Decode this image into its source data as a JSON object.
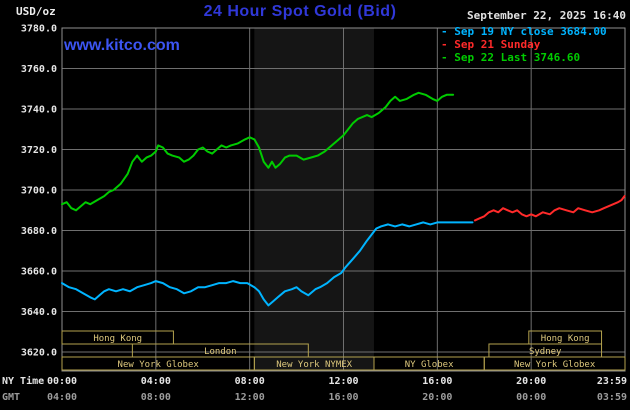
{
  "header": {
    "units_label": "USD/oz",
    "title": "24 Hour Spot Gold (Bid)",
    "datetime": "September 22, 2025 16:40",
    "watermark": "www.kitco.com"
  },
  "legend": {
    "items": [
      {
        "marker": "-",
        "label": "Sep 19 NY close 3684.00",
        "color": "#00b4ff"
      },
      {
        "marker": "-",
        "label": "Sep 21 Sunday",
        "color": "#ff2a2a"
      },
      {
        "marker": "-",
        "label": "Sep 22 Last 3746.60",
        "color": "#00cc00"
      }
    ]
  },
  "axes": {
    "ny_time_label": "NY Time",
    "gmt_label": "GMT",
    "y_ticks": [
      "3780.0",
      "3760.0",
      "3740.0",
      "3720.0",
      "3700.0",
      "3680.0",
      "3660.0",
      "3640.0",
      "3620.0"
    ],
    "x_ticks": [
      {
        "h": 0,
        "ny": "00:00",
        "gmt": "04:00",
        "grid": false
      },
      {
        "h": 4,
        "ny": "04:00",
        "gmt": "08:00",
        "grid": true
      },
      {
        "h": 8,
        "ny": "08:00",
        "gmt": "12:00",
        "grid": true
      },
      {
        "h": 12,
        "ny": "12:00",
        "gmt": "16:00",
        "grid": true
      },
      {
        "h": 16,
        "ny": "16:00",
        "gmt": "20:00",
        "grid": true
      },
      {
        "h": 20,
        "ny": "20:00",
        "gmt": "00:00",
        "grid": true
      },
      {
        "h": 23.983,
        "ny": "23:59",
        "gmt": "03:59",
        "grid": false
      }
    ]
  },
  "sessions": {
    "border_color": "#b3a24e",
    "text_color": "#ddc87d",
    "rows": [
      [
        {
          "label": "Hong Kong",
          "start": 0,
          "end": 4.75
        },
        {
          "label": "Hong Kong",
          "start": 19.9,
          "end": 23.0
        }
      ],
      [
        {
          "label": "London",
          "start": 3.0,
          "end": 10.5
        },
        {
          "label": "Sydney",
          "start": 18.2,
          "end": 23.0
        }
      ],
      [
        {
          "label": "New York Globex",
          "start": 0,
          "end": 8.2
        },
        {
          "label": "New York NYMEX",
          "start": 8.2,
          "end": 13.3
        },
        {
          "label": "NY Globex",
          "start": 13.3,
          "end": 18.0
        },
        {
          "label": "New York Globex",
          "start": 18.0,
          "end": 24.0
        }
      ]
    ]
  },
  "chart_data": {
    "type": "line",
    "title": "24 Hour Spot Gold (Bid)",
    "xlabel": "NY Time (hours)",
    "ylabel": "USD/oz",
    "xlim": [
      0,
      24
    ],
    "ylim": [
      3620,
      3780
    ],
    "grid": true,
    "legend_position": "top-right",
    "band_color": "#151515",
    "highlight_band": {
      "start": 8.2,
      "end": 13.3,
      "meaning": "New York NYMEX session"
    },
    "series": [
      {
        "id": "sep19",
        "name": "Sep 19 NY close 3684.00",
        "color": "#00b4ff",
        "points": [
          [
            0,
            3654
          ],
          [
            0.3,
            3652
          ],
          [
            0.6,
            3651
          ],
          [
            0.9,
            3649
          ],
          [
            1.2,
            3647
          ],
          [
            1.4,
            3646
          ],
          [
            1.6,
            3648
          ],
          [
            1.8,
            3650
          ],
          [
            2,
            3651
          ],
          [
            2.3,
            3650
          ],
          [
            2.6,
            3651
          ],
          [
            2.9,
            3650
          ],
          [
            3.2,
            3652
          ],
          [
            3.5,
            3653
          ],
          [
            3.8,
            3654
          ],
          [
            4,
            3655
          ],
          [
            4.3,
            3654
          ],
          [
            4.6,
            3652
          ],
          [
            4.9,
            3651
          ],
          [
            5.2,
            3649
          ],
          [
            5.5,
            3650
          ],
          [
            5.8,
            3652
          ],
          [
            6.1,
            3652
          ],
          [
            6.4,
            3653
          ],
          [
            6.7,
            3654
          ],
          [
            7,
            3654
          ],
          [
            7.3,
            3655
          ],
          [
            7.6,
            3654
          ],
          [
            7.9,
            3654
          ],
          [
            8.2,
            3652
          ],
          [
            8.4,
            3650
          ],
          [
            8.6,
            3646
          ],
          [
            8.8,
            3643
          ],
          [
            9,
            3645
          ],
          [
            9.2,
            3647
          ],
          [
            9.5,
            3650
          ],
          [
            9.8,
            3651
          ],
          [
            10,
            3652
          ],
          [
            10.2,
            3650
          ],
          [
            10.5,
            3648
          ],
          [
            10.8,
            3651
          ],
          [
            11,
            3652
          ],
          [
            11.3,
            3654
          ],
          [
            11.6,
            3657
          ],
          [
            11.9,
            3659
          ],
          [
            12.1,
            3662
          ],
          [
            12.4,
            3666
          ],
          [
            12.7,
            3670
          ],
          [
            13,
            3675
          ],
          [
            13.2,
            3678
          ],
          [
            13.4,
            3681
          ],
          [
            13.6,
            3682
          ],
          [
            13.9,
            3683
          ],
          [
            14.2,
            3682
          ],
          [
            14.5,
            3683
          ],
          [
            14.8,
            3682
          ],
          [
            15.1,
            3683
          ],
          [
            15.4,
            3684
          ],
          [
            15.7,
            3683
          ],
          [
            16,
            3684
          ],
          [
            16.4,
            3684
          ],
          [
            16.8,
            3684
          ],
          [
            17.2,
            3684
          ],
          [
            17.5,
            3684
          ]
        ]
      },
      {
        "id": "sep21",
        "name": "Sep 21 Sunday",
        "color": "#ff2a2a",
        "points": [
          [
            17.6,
            3685
          ],
          [
            17.8,
            3686
          ],
          [
            18,
            3687
          ],
          [
            18.2,
            3689
          ],
          [
            18.4,
            3690
          ],
          [
            18.6,
            3689
          ],
          [
            18.8,
            3691
          ],
          [
            19,
            3690
          ],
          [
            19.2,
            3689
          ],
          [
            19.4,
            3690
          ],
          [
            19.6,
            3688
          ],
          [
            19.8,
            3687
          ],
          [
            20,
            3688
          ],
          [
            20.2,
            3687
          ],
          [
            20.5,
            3689
          ],
          [
            20.8,
            3688
          ],
          [
            21,
            3690
          ],
          [
            21.2,
            3691
          ],
          [
            21.5,
            3690
          ],
          [
            21.8,
            3689
          ],
          [
            22,
            3691
          ],
          [
            22.3,
            3690
          ],
          [
            22.6,
            3689
          ],
          [
            22.9,
            3690
          ],
          [
            23.1,
            3691
          ],
          [
            23.3,
            3692
          ],
          [
            23.5,
            3693
          ],
          [
            23.7,
            3694
          ],
          [
            23.85,
            3695
          ],
          [
            23.98,
            3697
          ]
        ]
      },
      {
        "id": "sep22",
        "name": "Sep 22 Last 3746.60",
        "color": "#00cc00",
        "points": [
          [
            0,
            3693
          ],
          [
            0.2,
            3694
          ],
          [
            0.4,
            3691
          ],
          [
            0.6,
            3690
          ],
          [
            0.8,
            3692
          ],
          [
            1,
            3694
          ],
          [
            1.2,
            3693
          ],
          [
            1.5,
            3695
          ],
          [
            1.8,
            3697
          ],
          [
            2,
            3699
          ],
          [
            2.2,
            3700
          ],
          [
            2.5,
            3703
          ],
          [
            2.8,
            3708
          ],
          [
            3,
            3714
          ],
          [
            3.2,
            3717
          ],
          [
            3.4,
            3714
          ],
          [
            3.6,
            3716
          ],
          [
            3.8,
            3717
          ],
          [
            4,
            3719
          ],
          [
            4.1,
            3722
          ],
          [
            4.3,
            3721
          ],
          [
            4.5,
            3718
          ],
          [
            4.7,
            3717
          ],
          [
            5,
            3716
          ],
          [
            5.2,
            3714
          ],
          [
            5.4,
            3715
          ],
          [
            5.6,
            3717
          ],
          [
            5.8,
            3720
          ],
          [
            6,
            3721
          ],
          [
            6.2,
            3719
          ],
          [
            6.4,
            3718
          ],
          [
            6.6,
            3720
          ],
          [
            6.8,
            3722
          ],
          [
            7,
            3721
          ],
          [
            7.2,
            3722
          ],
          [
            7.5,
            3723
          ],
          [
            7.8,
            3725
          ],
          [
            8,
            3726
          ],
          [
            8.2,
            3725
          ],
          [
            8.4,
            3721
          ],
          [
            8.6,
            3714
          ],
          [
            8.8,
            3711
          ],
          [
            8.95,
            3714
          ],
          [
            9.1,
            3711
          ],
          [
            9.3,
            3713
          ],
          [
            9.5,
            3716
          ],
          [
            9.7,
            3717
          ],
          [
            10,
            3717
          ],
          [
            10.3,
            3715
          ],
          [
            10.6,
            3716
          ],
          [
            10.9,
            3717
          ],
          [
            11.2,
            3719
          ],
          [
            11.5,
            3722
          ],
          [
            11.8,
            3725
          ],
          [
            12,
            3727
          ],
          [
            12.2,
            3730
          ],
          [
            12.4,
            3733
          ],
          [
            12.6,
            3735
          ],
          [
            12.8,
            3736
          ],
          [
            13,
            3737
          ],
          [
            13.2,
            3736
          ],
          [
            13.5,
            3738
          ],
          [
            13.8,
            3741
          ],
          [
            14,
            3744
          ],
          [
            14.2,
            3746
          ],
          [
            14.4,
            3744
          ],
          [
            14.7,
            3745
          ],
          [
            15,
            3747
          ],
          [
            15.2,
            3748
          ],
          [
            15.5,
            3747
          ],
          [
            15.8,
            3745
          ],
          [
            16,
            3744
          ],
          [
            16.2,
            3746
          ],
          [
            16.4,
            3747
          ],
          [
            16.67,
            3747
          ]
        ]
      }
    ]
  }
}
